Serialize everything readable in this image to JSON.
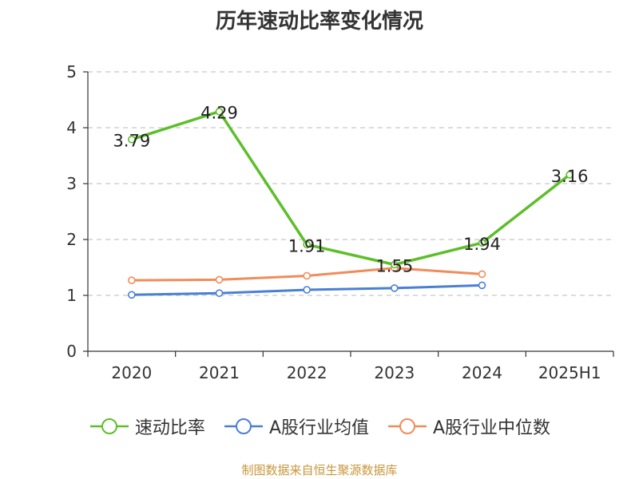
{
  "chart_data": {
    "type": "line",
    "title": "历年速动比率变化情况",
    "categories": [
      "2020",
      "2021",
      "2022",
      "2023",
      "2024",
      "2025H1"
    ],
    "ylim": [
      0,
      5
    ],
    "yticks": [
      0,
      1,
      2,
      3,
      4,
      5
    ],
    "grid": "horizontal dashed",
    "legend_position": "bottom",
    "series": [
      {
        "name": "速动比率",
        "color": "#5cbf2a",
        "values": [
          3.79,
          4.29,
          1.91,
          1.55,
          1.94,
          3.16
        ],
        "show_labels": true
      },
      {
        "name": "A股行业均值",
        "color": "#4a7fd6",
        "values": [
          1.01,
          1.04,
          1.1,
          1.13,
          1.18,
          null
        ],
        "show_labels": false
      },
      {
        "name": "A股行业中位数",
        "color": "#f08c5a",
        "values": [
          1.27,
          1.28,
          1.35,
          1.49,
          1.38,
          null
        ],
        "show_labels": false
      }
    ]
  },
  "source_note": "制图数据来自恒生聚源数据库"
}
